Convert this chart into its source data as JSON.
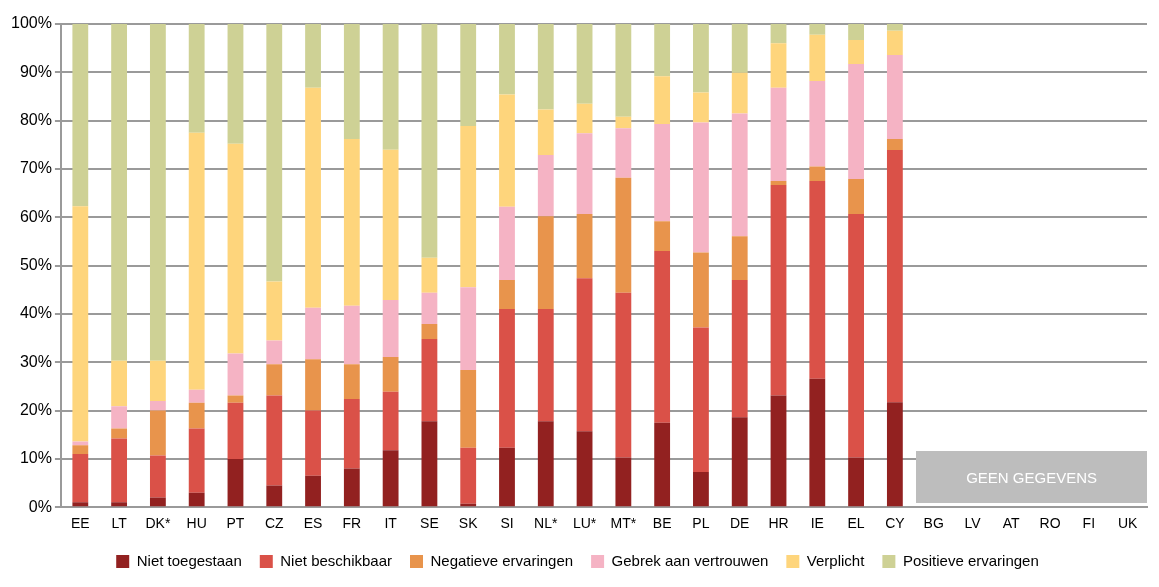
{
  "chart_data": {
    "type": "bar",
    "stacked": true,
    "categories": [
      "EE",
      "LT",
      "DK*",
      "HU",
      "PT",
      "CZ",
      "ES",
      "FR",
      "IT",
      "SE",
      "SK",
      "SI",
      "NL*",
      "LU*",
      "MT*",
      "BE",
      "PL",
      "DE",
      "HR",
      "IE",
      "EL",
      "CY",
      "BG",
      "LV",
      "AT",
      "RO",
      "FI",
      "UK"
    ],
    "series": [
      {
        "name": "Niet toegestaan",
        "color": "#922120",
        "values": [
          1,
          1,
          2,
          3,
          10,
          4.5,
          6.5,
          8,
          11.8,
          17.8,
          0.7,
          12.3,
          17.8,
          15.7,
          10.3,
          17.5,
          7.3,
          18.6,
          23.1,
          26.6,
          10.3,
          21.7,
          null,
          null,
          null,
          null,
          null,
          null
        ]
      },
      {
        "name": "Niet beschikbaar",
        "color": "#da5148",
        "values": [
          10,
          13.2,
          8.7,
          13.3,
          11.6,
          18.6,
          13.5,
          14.4,
          12.1,
          17,
          11.6,
          28.7,
          23.2,
          31.7,
          34.1,
          35.5,
          29.9,
          28.4,
          43.6,
          40.9,
          50.4,
          52.2,
          null,
          null,
          null,
          null,
          null,
          null
        ]
      },
      {
        "name": "Negatieve ervaringen",
        "color": "#e8944c",
        "values": [
          1.8,
          2.1,
          9.3,
          5.3,
          1.5,
          6.5,
          10.6,
          7.2,
          7.2,
          3.1,
          16.1,
          6,
          19.2,
          13.3,
          23.8,
          6.2,
          15.5,
          9.1,
          0.8,
          3,
          7.2,
          2.3,
          null,
          null,
          null,
          null,
          null,
          null
        ]
      },
      {
        "name": "Gebrek aan vertrouwen",
        "color": "#f5b3c4",
        "values": [
          0.8,
          4.6,
          2,
          2.7,
          8.7,
          4.9,
          10.7,
          12.1,
          11.8,
          6.5,
          17.1,
          15.2,
          12.7,
          16.7,
          10.2,
          20.1,
          26.9,
          25.4,
          19.3,
          17.7,
          23.8,
          17.4,
          null,
          null,
          null,
          null,
          null,
          null
        ]
      },
      {
        "name": "Verplicht",
        "color": "#fed57c",
        "values": [
          48.7,
          9.4,
          8.3,
          53.2,
          43.4,
          12.2,
          45.5,
          34.5,
          31.1,
          7.2,
          33.4,
          23.2,
          9.4,
          6.1,
          2.4,
          9.9,
          6.2,
          8.4,
          9.2,
          9.6,
          5,
          5,
          null,
          null,
          null,
          null,
          null,
          null
        ]
      },
      {
        "name": "Positieve ervaringen",
        "color": "#ced195",
        "values": [
          37.7,
          69.7,
          69.7,
          22.5,
          24.8,
          53.3,
          13.2,
          23.8,
          26,
          48.4,
          21.1,
          14.6,
          17.7,
          16.5,
          19.2,
          10.8,
          14.2,
          10.1,
          4,
          2.2,
          3.3,
          1.4,
          null,
          null,
          null,
          null,
          null,
          null
        ]
      }
    ],
    "ylim": [
      0,
      100
    ],
    "yticks": [
      {
        "value": 0,
        "label": "0%"
      },
      {
        "value": 10,
        "label": "10%"
      },
      {
        "value": 20,
        "label": "20%"
      },
      {
        "value": 30,
        "label": "30%"
      },
      {
        "value": 40,
        "label": "40%"
      },
      {
        "value": 50,
        "label": "50%"
      },
      {
        "value": 60,
        "label": "60%"
      },
      {
        "value": 70,
        "label": "70%"
      },
      {
        "value": 80,
        "label": "80%"
      },
      {
        "value": 90,
        "label": "90%"
      },
      {
        "value": 100,
        "label": "100%"
      }
    ],
    "grid": "y",
    "legend": "bottom",
    "annotations": [
      "GEEN GEGEVENS"
    ]
  }
}
